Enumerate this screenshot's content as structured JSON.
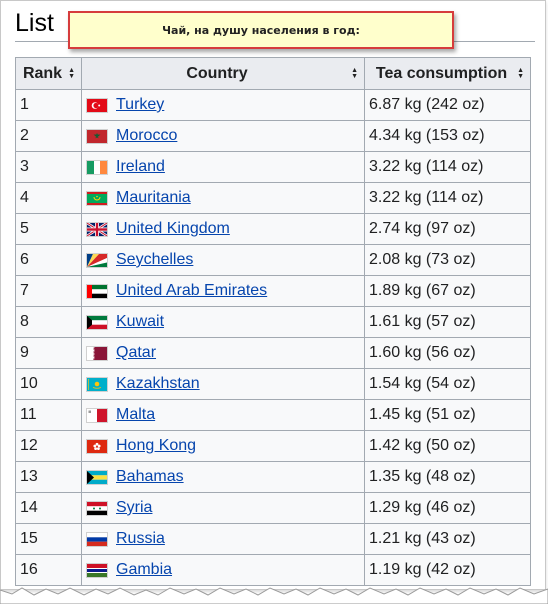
{
  "heading": "List",
  "note": "Чай, на душу населения в год:",
  "table": {
    "headers": {
      "rank": "Rank",
      "country": "Country",
      "tea": "Tea consumption"
    },
    "rows": [
      {
        "rank": "1",
        "country": "Turkey",
        "tea": "6.87 kg (242 oz)",
        "flag": "turkey-flag-icon"
      },
      {
        "rank": "2",
        "country": "Morocco",
        "tea": "4.34 kg (153 oz)",
        "flag": "morocco-flag-icon"
      },
      {
        "rank": "3",
        "country": "Ireland",
        "tea": "3.22 kg (114 oz)",
        "flag": "ireland-flag-icon"
      },
      {
        "rank": "4",
        "country": "Mauritania",
        "tea": "3.22 kg (114 oz)",
        "flag": "mauritania-flag-icon"
      },
      {
        "rank": "5",
        "country": "United Kingdom",
        "tea": "2.74 kg (97 oz)",
        "flag": "united-kingdom-flag-icon"
      },
      {
        "rank": "6",
        "country": "Seychelles",
        "tea": "2.08 kg (73 oz)",
        "flag": "seychelles-flag-icon"
      },
      {
        "rank": "7",
        "country": "United Arab Emirates",
        "tea": "1.89 kg (67 oz)",
        "flag": "uae-flag-icon"
      },
      {
        "rank": "8",
        "country": "Kuwait",
        "tea": "1.61 kg (57 oz)",
        "flag": "kuwait-flag-icon"
      },
      {
        "rank": "9",
        "country": "Qatar",
        "tea": "1.60 kg (56 oz)",
        "flag": "qatar-flag-icon"
      },
      {
        "rank": "10",
        "country": "Kazakhstan",
        "tea": "1.54 kg (54 oz)",
        "flag": "kazakhstan-flag-icon"
      },
      {
        "rank": "11",
        "country": "Malta",
        "tea": "1.45 kg (51 oz)",
        "flag": "malta-flag-icon"
      },
      {
        "rank": "12",
        "country": "Hong Kong",
        "tea": "1.42 kg (50 oz)",
        "flag": "hong-kong-flag-icon"
      },
      {
        "rank": "13",
        "country": "Bahamas",
        "tea": "1.35 kg (48 oz)",
        "flag": "bahamas-flag-icon"
      },
      {
        "rank": "14",
        "country": "Syria",
        "tea": "1.29 kg (46 oz)",
        "flag": "syria-flag-icon"
      },
      {
        "rank": "15",
        "country": "Russia",
        "tea": "1.21 kg (43 oz)",
        "flag": "russia-flag-icon"
      },
      {
        "rank": "16",
        "country": "Gambia",
        "tea": "1.19 kg (42 oz)",
        "flag": "gambia-flag-icon"
      }
    ]
  },
  "colors": {
    "link": "#0645ad",
    "header_bg": "#eaecf0",
    "cell_bg": "#f8f9fa",
    "border": "#a2a9b1",
    "note_bg": "#ffffcc",
    "note_border": "#d63c3c"
  }
}
